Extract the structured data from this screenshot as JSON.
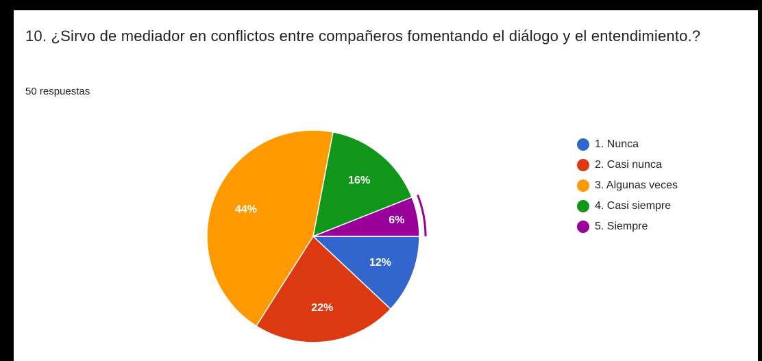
{
  "chart_data": {
    "type": "pie",
    "title": "10. ¿Sirvo de mediador en conflictos entre compañeros fomentando el diálogo y el entendimiento.?",
    "subtitle": "50 respuestas",
    "categories": [
      "1. Nunca",
      "2. Casi nunca",
      "3. Algunas veces",
      "4. Casi siempre",
      "5. Siempre"
    ],
    "values": [
      12,
      22,
      44,
      16,
      6
    ],
    "value_labels": [
      "12%",
      "22%",
      "44%",
      "16%",
      "6%"
    ],
    "colors": [
      "#3366cc",
      "#dc3912",
      "#ff9900",
      "#109618",
      "#990099"
    ],
    "legend": "right"
  }
}
